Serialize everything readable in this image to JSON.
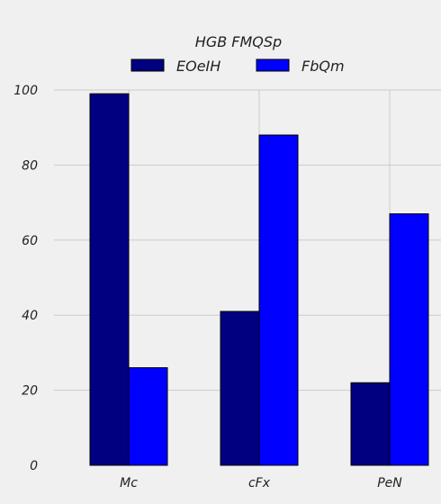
{
  "chart_data": {
    "type": "bar",
    "title": "",
    "legend": {
      "title": "HGB FMQSp",
      "placement": "top-center"
    },
    "categories": [
      "Mc",
      "cFx",
      "PeN"
    ],
    "series": [
      {
        "name": "EOeIH",
        "color": "#000080",
        "values": [
          99,
          41,
          22
        ]
      },
      {
        "name": "FbQm",
        "color": "#0000ff",
        "values": [
          26,
          88,
          67
        ]
      }
    ],
    "y_ticks": [
      "0",
      "20",
      "40",
      "60",
      "80",
      "100"
    ],
    "ylim": [
      0,
      100
    ],
    "xlabel": "",
    "ylabel": "",
    "grid": true,
    "background": "#f0f0f0",
    "grid_color": "#cccccc"
  }
}
